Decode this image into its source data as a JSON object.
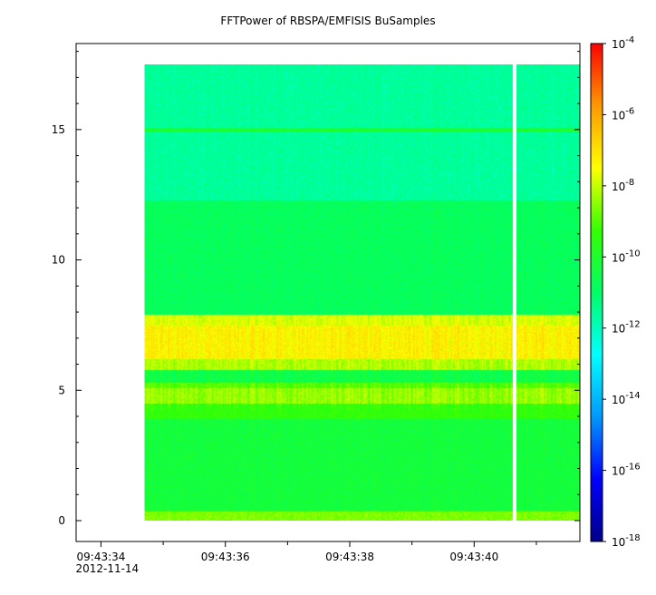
{
  "chart_data": {
    "type": "heatmap",
    "title": "FFTPower of RBSPA/EMFISIS  BuSamples",
    "xlabel": "",
    "ylabel": "",
    "x_date": "2012-11-14",
    "x_range": [
      "09:43:33.6",
      "09:43:41.7"
    ],
    "x_ticks": [
      "09:43:34",
      "09:43:36",
      "09:43:38",
      "09:43:40"
    ],
    "x_minor_ticks": [
      "09:43:35",
      "09:43:37",
      "09:43:39",
      "09:43:41"
    ],
    "ylim": [
      -0.8,
      18.3
    ],
    "y_ticks": [
      0,
      5,
      10,
      15
    ],
    "data_x_range": [
      "09:43:34.7",
      "09:43:41.7"
    ],
    "data_y_range": [
      0,
      17.5
    ],
    "data_gap": [
      "09:43:40.62",
      "09:43:40.68"
    ],
    "colorbar": {
      "scale": "log",
      "range": [
        1e-18,
        0.0001
      ],
      "tick_labels": [
        {
          "base": "10",
          "exp": "-4"
        },
        {
          "base": "10",
          "exp": "-6"
        },
        {
          "base": "10",
          "exp": "-8"
        },
        {
          "base": "10",
          "exp": "-10"
        },
        {
          "base": "10",
          "exp": "-12"
        },
        {
          "base": "10",
          "exp": "-14"
        },
        {
          "base": "10",
          "exp": "-16"
        },
        {
          "base": "10",
          "exp": "-18"
        }
      ],
      "colors": [
        "#00008b",
        "#0000ff",
        "#0099ff",
        "#00ffff",
        "#00ff66",
        "#33ff00",
        "#ffff00",
        "#ff9900",
        "#ff0000"
      ]
    },
    "bands": [
      {
        "y": [
          0,
          0.4
        ],
        "log_power": -9.2
      },
      {
        "y": [
          0.4,
          3.9
        ],
        "log_power": -10.3
      },
      {
        "y": [
          3.9,
          4.5
        ],
        "log_power": -9.4
      },
      {
        "y": [
          4.5,
          5.1
        ],
        "log_power": -8.4
      },
      {
        "y": [
          5.1,
          5.3
        ],
        "log_power": -9.0
      },
      {
        "y": [
          5.3,
          5.8
        ],
        "log_power": -10.5
      },
      {
        "y": [
          5.8,
          6.2
        ],
        "log_power": -8.2
      },
      {
        "y": [
          6.2,
          7.5
        ],
        "log_power": -7.3
      },
      {
        "y": [
          7.5,
          7.9
        ],
        "log_power": -7.8
      },
      {
        "y": [
          7.9,
          12.3
        ],
        "log_power": -10.8
      },
      {
        "y": [
          12.3,
          17.5
        ],
        "log_power": -11.6
      }
    ],
    "line_feature": {
      "y": 15.0,
      "log_power": -10.0
    }
  }
}
